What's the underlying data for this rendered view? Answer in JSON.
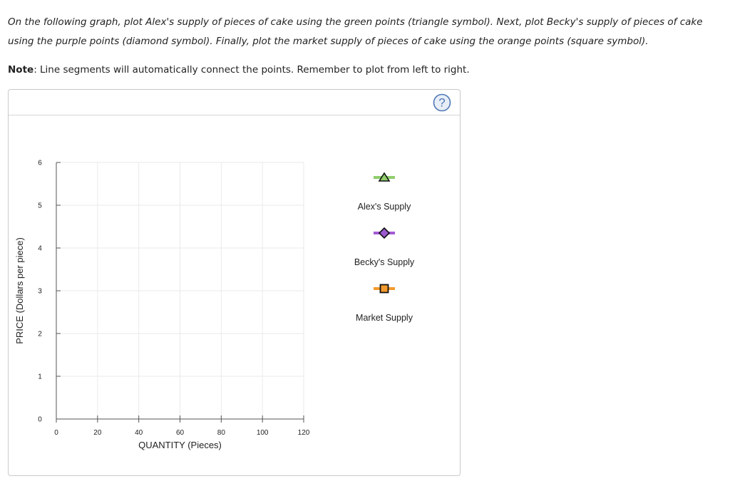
{
  "instructions": {
    "text": "On the following graph, plot Alex's supply of pieces of cake using the green points (triangle symbol). Next, plot Becky's supply of pieces of cake using the purple points (diamond symbol). Finally, plot the market supply of pieces of cake using the orange points (square symbol).",
    "note_label": "Note",
    "note_text": ": Line segments will automatically connect the points. Remember to plot from left to right."
  },
  "help_icon": "question-circle-icon",
  "chart_data": {
    "type": "line",
    "xlabel": "QUANTITY (Pieces)",
    "ylabel": "PRICE (Dollars per piece)",
    "xlim": [
      0,
      120
    ],
    "ylim": [
      0,
      6
    ],
    "x_ticks": [
      "0",
      "20",
      "40",
      "60",
      "80",
      "100",
      "120"
    ],
    "y_ticks": [
      "0",
      "1",
      "2",
      "3",
      "4",
      "5",
      "6"
    ],
    "grid": true,
    "series": []
  },
  "legend": [
    {
      "name": "Alex's Supply",
      "symbol": "triangle",
      "color": "#8fce6b",
      "marker_fill": "#8fce6b",
      "icon": "triangle-icon"
    },
    {
      "name": "Becky's Supply",
      "symbol": "diamond",
      "color": "#a45ad6",
      "marker_fill": "#9b59d0",
      "icon": "diamond-icon"
    },
    {
      "name": "Market Supply",
      "symbol": "square",
      "color": "#f39a2d",
      "marker_fill": "#f39a2d",
      "icon": "square-icon"
    }
  ]
}
